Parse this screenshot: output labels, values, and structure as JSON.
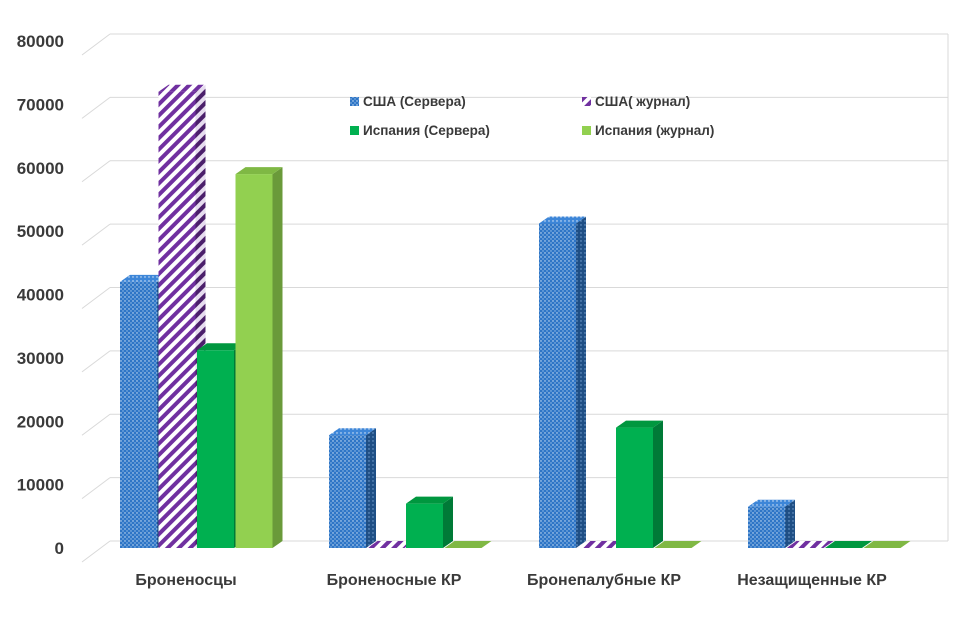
{
  "chart_data": {
    "type": "bar",
    "categories": [
      "Броненосцы",
      "Броненосные КР",
      "Бронепалубные КР",
      "Незащищенные КР"
    ],
    "series": [
      {
        "name": "США (Сервера)",
        "values": [
          42000,
          17800,
          51200,
          6500
        ],
        "color": "#2e75c6",
        "pattern": "dots"
      },
      {
        "name": "США( журнал)",
        "values": [
          72000,
          0,
          0,
          0
        ],
        "color": "#7030a0",
        "pattern": "diagonal-stripes"
      },
      {
        "name": "Испания (Сервера)",
        "values": [
          31200,
          7000,
          19000,
          0
        ],
        "color": "#00b050",
        "pattern": "solid"
      },
      {
        "name": "Испания (журнал)",
        "values": [
          59000,
          0,
          0,
          0
        ],
        "color": "#92d050",
        "pattern": "solid"
      }
    ],
    "yticks": [
      "0",
      "10000",
      "20000",
      "30000",
      "40000",
      "50000",
      "60000",
      "70000",
      "80000"
    ],
    "ylim": [
      0,
      80000
    ],
    "grid": true,
    "legend_position": "top-center, inside plot"
  }
}
